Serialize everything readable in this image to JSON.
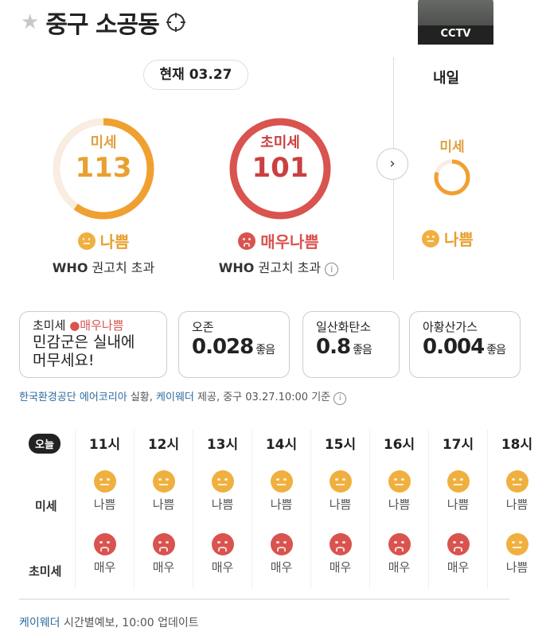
{
  "header": {
    "location": "중구 소공동",
    "favorite_icon": "star-icon",
    "locate_icon": "crosshair-icon",
    "cctv_label": "CCTV"
  },
  "current": {
    "date_label": "현재 03.27",
    "pm10": {
      "label": "미세",
      "value": "113",
      "status": "나쁨",
      "who": "WHO",
      "who_text": "권고치 초과",
      "color": "#f0a030",
      "fill": 0.6
    },
    "pm25": {
      "label": "초미세",
      "value": "101",
      "status": "매우나쁨",
      "who": "WHO",
      "who_text": "권고치 초과",
      "color": "#d9534f",
      "fill": 1.0
    }
  },
  "tomorrow": {
    "label": "내일",
    "pm10": {
      "label": "미세",
      "status": "나쁨",
      "fill": 0.8
    }
  },
  "cards": [
    {
      "title": "초미세",
      "badge": "매우나쁨",
      "message": "민감군은 실내에 머무세요!"
    },
    {
      "title": "오존",
      "value": "0.028",
      "grade": "좋음"
    },
    {
      "title": "일산화탄소",
      "value": "0.8",
      "grade": "좋음"
    },
    {
      "title": "아황산가스",
      "value": "0.004",
      "grade": "좋음"
    }
  ],
  "source": {
    "agency": "한국환경공단 에어코리아",
    "t1": "실황,",
    "provider": "케이웨더",
    "t2": "제공, 중구 03.27.10:00 기준"
  },
  "hourly": {
    "today": "오늘",
    "row1": "미세",
    "row2": "초미세",
    "hours": [
      {
        "hour": "11시",
        "pm10": "나쁨",
        "pm25": "매우"
      },
      {
        "hour": "12시",
        "pm10": "나쁨",
        "pm25": "매우"
      },
      {
        "hour": "13시",
        "pm10": "나쁨",
        "pm25": "매우"
      },
      {
        "hour": "14시",
        "pm10": "나쁨",
        "pm25": "매우"
      },
      {
        "hour": "15시",
        "pm10": "나쁨",
        "pm25": "매우"
      },
      {
        "hour": "16시",
        "pm10": "나쁨",
        "pm25": "매우"
      },
      {
        "hour": "17시",
        "pm10": "나쁨",
        "pm25": "매우"
      },
      {
        "hour": "18시",
        "pm10": "나쁨",
        "pm25": "나쁨"
      }
    ]
  },
  "footer": {
    "provider": "케이웨더",
    "text": "시간별예보, 10:00 업데이트"
  },
  "colors": {
    "bad": "#f0b040",
    "very_bad": "#d9534f",
    "link": "#2c6aa0"
  }
}
